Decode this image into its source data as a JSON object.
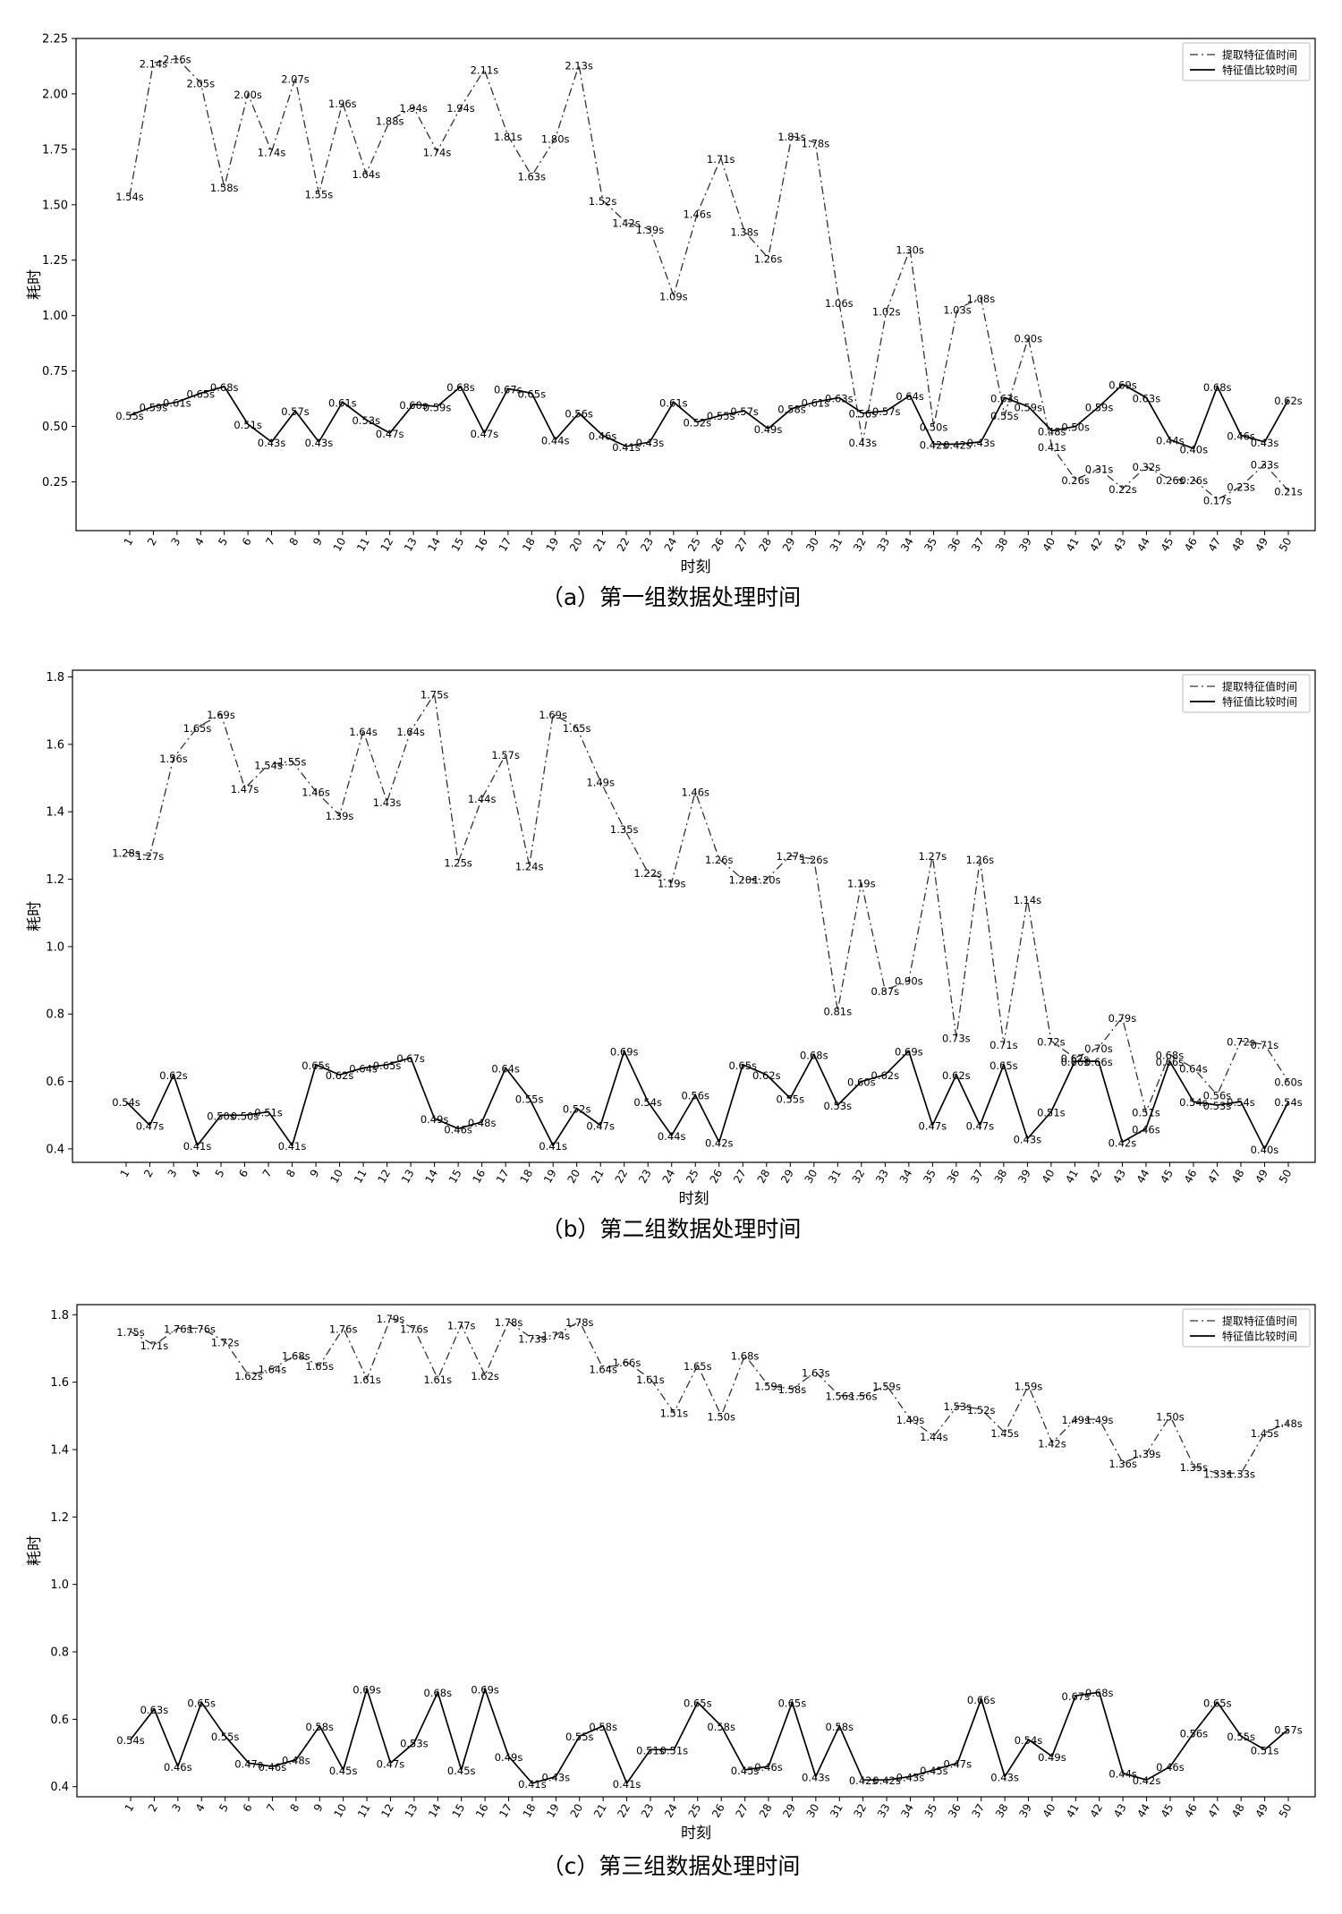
{
  "chart_data": [
    {
      "type": "line",
      "caption": "（a）第一组数据处理时间",
      "xlabel": "时刻",
      "ylabel": "耗时",
      "ylim": [
        0.03,
        2.25
      ],
      "yticks": [
        0.25,
        0.5,
        0.75,
        1.0,
        1.25,
        1.5,
        1.75,
        2.0,
        2.25
      ],
      "ytick_format": 2,
      "legend_position": "top-right",
      "label_suffix": "s",
      "x": [
        1,
        2,
        3,
        4,
        5,
        6,
        7,
        8,
        9,
        10,
        11,
        12,
        13,
        14,
        15,
        16,
        17,
        18,
        19,
        20,
        21,
        22,
        23,
        24,
        25,
        26,
        27,
        28,
        29,
        30,
        31,
        32,
        33,
        34,
        35,
        36,
        37,
        38,
        39,
        40,
        41,
        42,
        43,
        44,
        45,
        46,
        47,
        48,
        49,
        50
      ],
      "series": [
        {
          "name": "提取特征值时间",
          "style": "dashdot",
          "values": [
            1.54,
            2.14,
            2.16,
            2.05,
            1.58,
            2.0,
            1.74,
            2.07,
            1.55,
            1.96,
            1.64,
            1.88,
            1.94,
            1.74,
            1.94,
            2.11,
            1.81,
            1.63,
            1.8,
            2.13,
            1.52,
            1.42,
            1.39,
            1.09,
            1.46,
            1.71,
            1.38,
            1.26,
            1.81,
            1.78,
            1.06,
            0.43,
            1.02,
            1.3,
            0.5,
            1.03,
            1.08,
            0.55,
            0.9,
            0.41,
            0.26,
            0.31,
            0.22,
            0.32,
            0.26,
            0.26,
            0.17,
            0.23,
            0.33,
            0.21
          ]
        },
        {
          "name": "特征值比较时间",
          "style": "solid",
          "values": [
            0.55,
            0.59,
            0.61,
            0.65,
            0.68,
            0.51,
            0.43,
            0.57,
            0.43,
            0.61,
            0.53,
            0.47,
            0.6,
            0.59,
            0.68,
            0.47,
            0.67,
            0.65,
            0.44,
            0.56,
            0.46,
            0.41,
            0.43,
            0.61,
            0.52,
            0.55,
            0.57,
            0.49,
            0.58,
            0.61,
            0.63,
            0.56,
            0.57,
            0.64,
            0.42,
            0.42,
            0.43,
            0.63,
            0.59,
            0.48,
            0.5,
            0.59,
            0.69,
            0.63,
            0.44,
            0.4,
            0.68,
            0.46,
            0.43,
            0.62
          ]
        }
      ]
    },
    {
      "type": "line",
      "caption": "（b）第二组数据处理时间",
      "xlabel": "时刻",
      "ylabel": "耗时",
      "ylim": [
        0.36,
        1.82
      ],
      "yticks": [
        0.4,
        0.6,
        0.8,
        1.0,
        1.2,
        1.4,
        1.6,
        1.8
      ],
      "ytick_format": 1,
      "legend_position": "top-right",
      "label_suffix": "s",
      "x": [
        1,
        2,
        3,
        4,
        5,
        6,
        7,
        8,
        9,
        10,
        11,
        12,
        13,
        14,
        15,
        16,
        17,
        18,
        19,
        20,
        21,
        22,
        23,
        24,
        25,
        26,
        27,
        28,
        29,
        30,
        31,
        32,
        33,
        34,
        35,
        36,
        37,
        38,
        39,
        40,
        41,
        42,
        43,
        44,
        45,
        46,
        47,
        48,
        49,
        50
      ],
      "series": [
        {
          "name": "提取特征值时间",
          "style": "dashdot",
          "values": [
            1.28,
            1.27,
            1.56,
            1.65,
            1.69,
            1.47,
            1.54,
            1.55,
            1.46,
            1.39,
            1.64,
            1.43,
            1.64,
            1.75,
            1.25,
            1.44,
            1.57,
            1.24,
            1.69,
            1.65,
            1.49,
            1.35,
            1.22,
            1.19,
            1.46,
            1.26,
            1.2,
            1.2,
            1.27,
            1.26,
            0.81,
            1.19,
            0.87,
            0.9,
            1.27,
            0.73,
            1.26,
            0.71,
            1.14,
            0.72,
            0.67,
            0.7,
            0.79,
            0.51,
            0.68,
            0.64,
            0.56,
            0.72,
            0.71,
            0.6
          ]
        },
        {
          "name": "特征值比较时间",
          "style": "solid",
          "values": [
            0.54,
            0.47,
            0.62,
            0.41,
            0.5,
            0.5,
            0.51,
            0.41,
            0.65,
            0.62,
            0.64,
            0.65,
            0.67,
            0.49,
            0.46,
            0.48,
            0.64,
            0.55,
            0.41,
            0.52,
            0.47,
            0.69,
            0.54,
            0.44,
            0.56,
            0.42,
            0.65,
            0.62,
            0.55,
            0.68,
            0.53,
            0.6,
            0.62,
            0.69,
            0.47,
            0.62,
            0.47,
            0.65,
            0.43,
            0.51,
            0.66,
            0.66,
            0.42,
            0.46,
            0.66,
            0.54,
            0.53,
            0.54,
            0.4,
            0.54
          ]
        }
      ]
    },
    {
      "type": "line",
      "caption": "（c）第三组数据处理时间",
      "xlabel": "时刻",
      "ylabel": "耗时",
      "ylim": [
        0.37,
        1.83
      ],
      "yticks": [
        0.4,
        0.6,
        0.8,
        1.0,
        1.2,
        1.4,
        1.6,
        1.8
      ],
      "ytick_format": 1,
      "legend_position": "top-right",
      "label_suffix": "s",
      "x": [
        1,
        2,
        3,
        4,
        5,
        6,
        7,
        8,
        9,
        10,
        11,
        12,
        13,
        14,
        15,
        16,
        17,
        18,
        19,
        20,
        21,
        22,
        23,
        24,
        25,
        26,
        27,
        28,
        29,
        30,
        31,
        32,
        33,
        34,
        35,
        36,
        37,
        38,
        39,
        40,
        41,
        42,
        43,
        44,
        45,
        46,
        47,
        48,
        49,
        50
      ],
      "series": [
        {
          "name": "提取特征值时间",
          "style": "dashdot",
          "values": [
            1.75,
            1.71,
            1.76,
            1.76,
            1.72,
            1.62,
            1.64,
            1.68,
            1.65,
            1.76,
            1.61,
            1.79,
            1.76,
            1.61,
            1.77,
            1.62,
            1.78,
            1.73,
            1.74,
            1.78,
            1.64,
            1.66,
            1.61,
            1.51,
            1.65,
            1.5,
            1.68,
            1.59,
            1.58,
            1.63,
            1.56,
            1.56,
            1.59,
            1.49,
            1.44,
            1.53,
            1.52,
            1.45,
            1.59,
            1.42,
            1.49,
            1.49,
            1.36,
            1.39,
            1.5,
            1.35,
            1.33,
            1.33,
            1.45,
            1.48
          ]
        },
        {
          "name": "特征值比较时间",
          "style": "solid",
          "values": [
            0.54,
            0.63,
            0.46,
            0.65,
            0.55,
            0.47,
            0.46,
            0.48,
            0.58,
            0.45,
            0.69,
            0.47,
            0.53,
            0.68,
            0.45,
            0.69,
            0.49,
            0.41,
            0.43,
            0.55,
            0.58,
            0.41,
            0.51,
            0.51,
            0.65,
            0.58,
            0.45,
            0.46,
            0.65,
            0.43,
            0.58,
            0.42,
            0.42,
            0.43,
            0.45,
            0.47,
            0.66,
            0.43,
            0.54,
            0.49,
            0.67,
            0.68,
            0.44,
            0.42,
            0.46,
            0.56,
            0.65,
            0.55,
            0.51,
            0.57
          ]
        }
      ]
    }
  ]
}
